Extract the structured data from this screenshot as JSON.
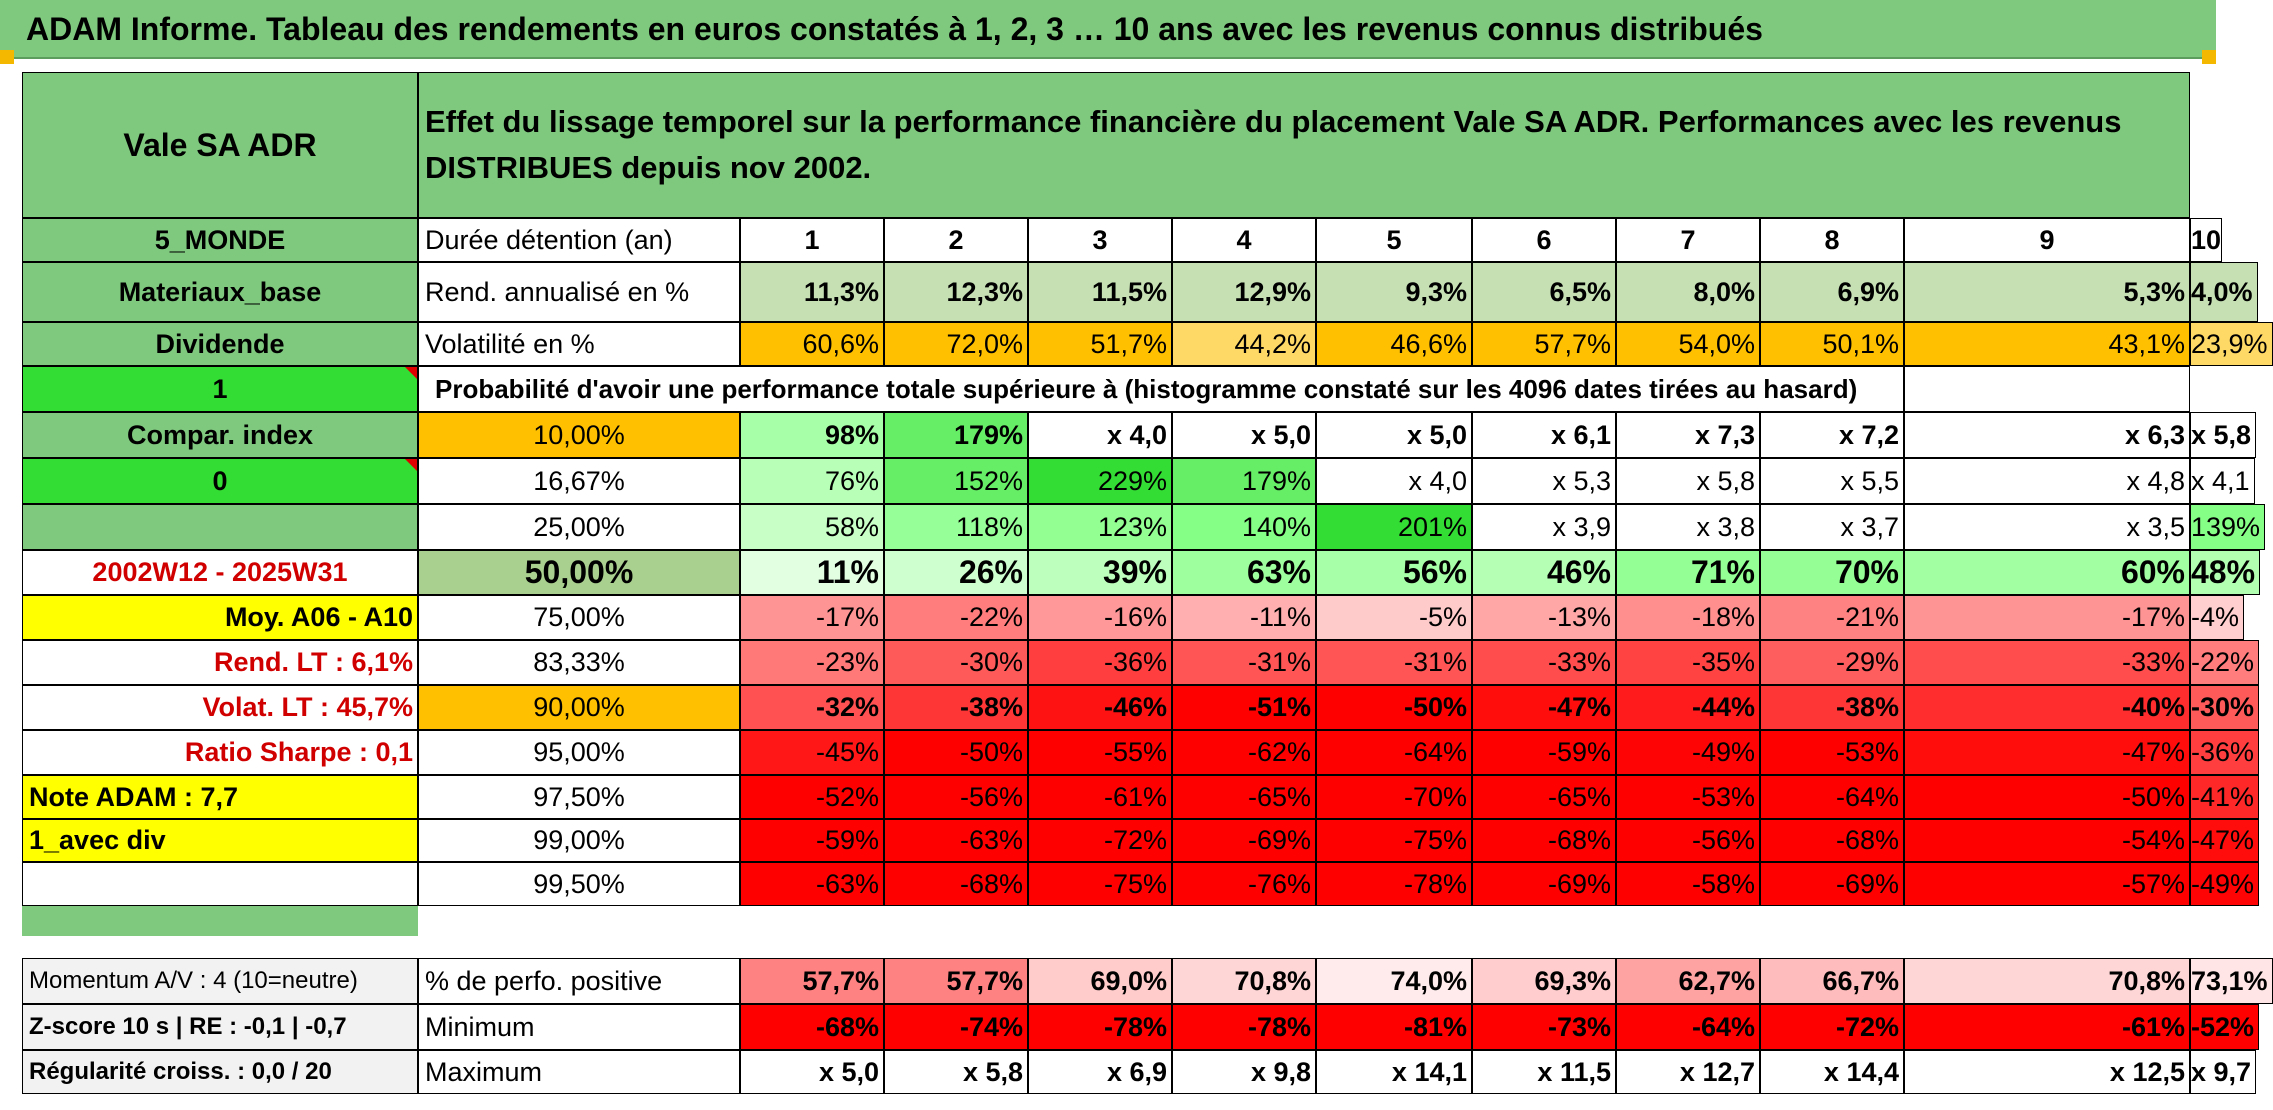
{
  "title": "ADAM Informe. Tableau des rendements en euros constatés à 1, 2, 3 … 10 ans avec les revenus connus distribués",
  "instrument": "Vale SA ADR",
  "description": "Effet du lissage temporel sur la performance financière du placement Vale SA ADR. Performances avec les revenus DISTRIBUES depuis nov 2002.",
  "left_panel": {
    "region": "5_MONDE",
    "sector": "Materiaux_base",
    "dividend_label": "Dividende",
    "dividend_value": "1",
    "compar_index_label": "Compar. index",
    "compar_index_value": "0",
    "period": "2002W12 - 2025W31",
    "moy": "Moy. A06 - A10",
    "rend_lt": "Rend. LT :   6,1%",
    "volat_lt": "Volat. LT :   45,7%",
    "sharpe": "Ratio Sharpe :    0,1",
    "note": "Note ADAM : 7,7",
    "mode": "1_avec div",
    "momentum": "Momentum A/V : 4 (10=neutre)",
    "zscore": "Z-score 10 s | RE : -0,1 | -0,7",
    "regularite": "Régularité croiss. : 0,0 / 20"
  },
  "row_labels": {
    "duree": "Durée détention (an)",
    "rend": "Rend. annualisé en %",
    "vol": "Volatilité en %",
    "proba": "Probabilité d'avoir une performance totale supérieure à (histogramme constaté sur les 4096 dates tirées au hasard)",
    "pos": "% de perfo. positive",
    "min": "Minimum",
    "max": "Maximum"
  },
  "years": [
    "1",
    "2",
    "3",
    "4",
    "5",
    "6",
    "7",
    "8",
    "9",
    "10"
  ],
  "rend": [
    "11,3%",
    "12,3%",
    "11,5%",
    "12,9%",
    "9,3%",
    "6,5%",
    "8,0%",
    "6,9%",
    "5,3%",
    "4,0%"
  ],
  "vol": [
    "60,6%",
    "72,0%",
    "51,7%",
    "44,2%",
    "46,6%",
    "57,7%",
    "54,0%",
    "50,1%",
    "43,1%",
    "23,9%"
  ],
  "percentiles": [
    {
      "label": "10,00%",
      "values": [
        "98%",
        "179%",
        "x 4,0",
        "x 5,0",
        "x 5,0",
        "x 6,1",
        "x 7,3",
        "x 7,2",
        "x 6,3",
        "x 5,8"
      ]
    },
    {
      "label": "16,67%",
      "values": [
        "76%",
        "152%",
        "229%",
        "179%",
        "x 4,0",
        "x 5,3",
        "x 5,8",
        "x 5,5",
        "x 4,8",
        "x 4,1"
      ]
    },
    {
      "label": "25,00%",
      "values": [
        "58%",
        "118%",
        "123%",
        "140%",
        "201%",
        "x 3,9",
        "x 3,8",
        "x 3,7",
        "x 3,5",
        "139%"
      ]
    },
    {
      "label": "50,00%",
      "values": [
        "11%",
        "26%",
        "39%",
        "63%",
        "56%",
        "46%",
        "71%",
        "70%",
        "60%",
        "48%"
      ]
    },
    {
      "label": "75,00%",
      "values": [
        "-17%",
        "-22%",
        "-16%",
        "-11%",
        "-5%",
        "-13%",
        "-18%",
        "-21%",
        "-17%",
        "-4%"
      ]
    },
    {
      "label": "83,33%",
      "values": [
        "-23%",
        "-30%",
        "-36%",
        "-31%",
        "-31%",
        "-33%",
        "-35%",
        "-29%",
        "-33%",
        "-22%"
      ]
    },
    {
      "label": "90,00%",
      "values": [
        "-32%",
        "-38%",
        "-46%",
        "-51%",
        "-50%",
        "-47%",
        "-44%",
        "-38%",
        "-40%",
        "-30%"
      ]
    },
    {
      "label": "95,00%",
      "values": [
        "-45%",
        "-50%",
        "-55%",
        "-62%",
        "-64%",
        "-59%",
        "-49%",
        "-53%",
        "-47%",
        "-36%"
      ]
    },
    {
      "label": "97,50%",
      "values": [
        "-52%",
        "-56%",
        "-61%",
        "-65%",
        "-70%",
        "-65%",
        "-53%",
        "-64%",
        "-50%",
        "-41%"
      ]
    },
    {
      "label": "99,00%",
      "values": [
        "-59%",
        "-63%",
        "-72%",
        "-69%",
        "-75%",
        "-68%",
        "-56%",
        "-68%",
        "-54%",
        "-47%"
      ]
    },
    {
      "label": "99,50%",
      "values": [
        "-63%",
        "-68%",
        "-75%",
        "-76%",
        "-78%",
        "-69%",
        "-58%",
        "-69%",
        "-57%",
        "-49%"
      ]
    }
  ],
  "pos": [
    "57,7%",
    "57,7%",
    "69,0%",
    "70,8%",
    "74,0%",
    "69,3%",
    "62,7%",
    "66,7%",
    "70,8%",
    "73,1%"
  ],
  "min": [
    "-68%",
    "-74%",
    "-78%",
    "-78%",
    "-81%",
    "-73%",
    "-64%",
    "-72%",
    "-61%",
    "-52%"
  ],
  "max": [
    "x 5,0",
    "x 5,8",
    "x 6,9",
    "x 9,8",
    "x 14,1",
    "x 11,5",
    "x 12,7",
    "x 14,4",
    "x 12,5",
    "x 9,7"
  ],
  "colors": {
    "header_green": "#7fc97f",
    "bright_green": "#33dd33",
    "orange": "#ffc000",
    "yellow": "#ffff00",
    "light_green": "#c6e0b4",
    "red": "#ff0000",
    "label_red": "#d10000"
  }
}
